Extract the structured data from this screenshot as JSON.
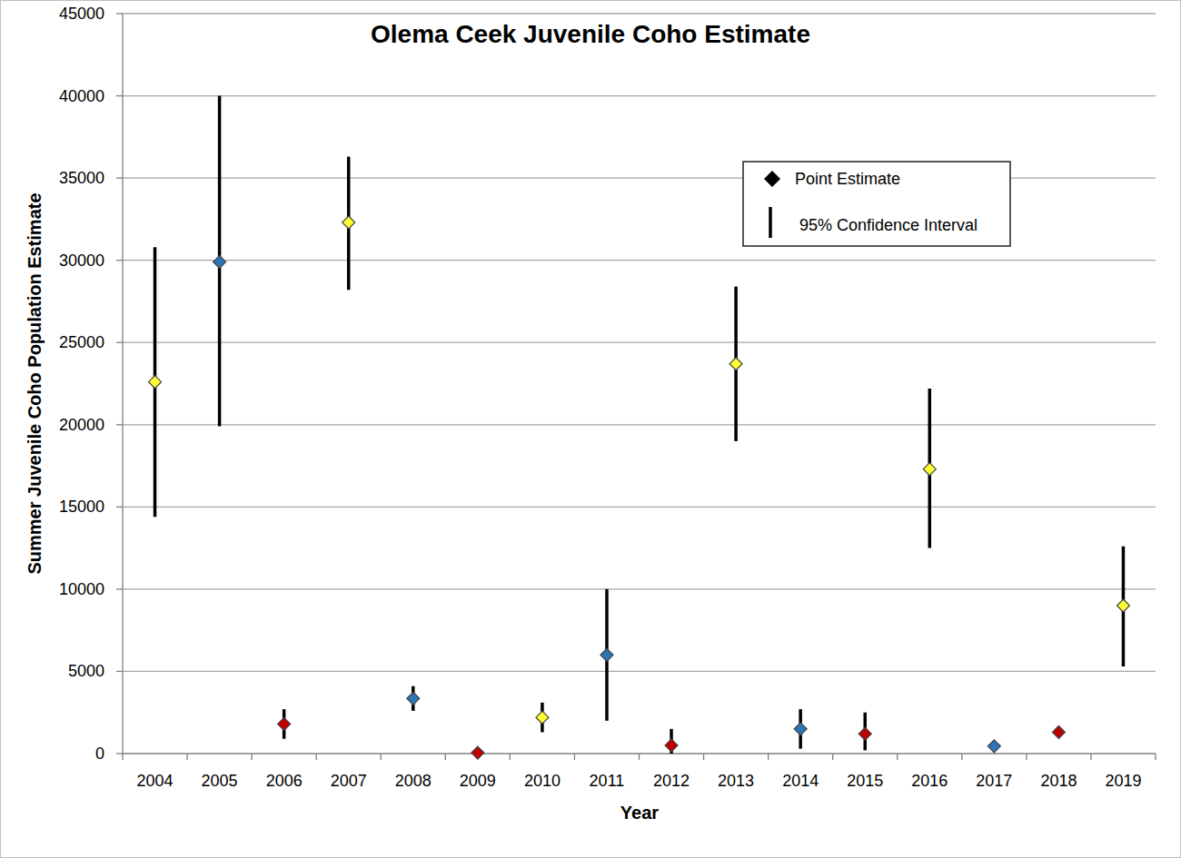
{
  "chart_data": {
    "type": "scatter",
    "title": "Olema Ceek Juvenile Coho Estimate",
    "x_label": "Year",
    "y_label": "Summer Juvenile Coho Population Estimate",
    "categories": [
      "2004",
      "2005",
      "2006",
      "2007",
      "2008",
      "2009",
      "2010",
      "2011",
      "2012",
      "2013",
      "2014",
      "2015",
      "2016",
      "2017",
      "2018",
      "2019"
    ],
    "values": [
      22600,
      29900,
      1800,
      32300,
      3350,
      50,
      2200,
      6000,
      500,
      23700,
      1500,
      1200,
      17300,
      450,
      1300,
      9000
    ],
    "ci_lower": [
      14400,
      19900,
      900,
      28200,
      2600,
      null,
      1300,
      2000,
      0,
      19000,
      300,
      200,
      12500,
      null,
      null,
      5300
    ],
    "ci_upper": [
      30800,
      40000,
      2700,
      36300,
      4100,
      null,
      3100,
      10000,
      1500,
      28400,
      2700,
      2500,
      22200,
      null,
      null,
      12600
    ],
    "colors": [
      "#ffff33",
      "#2e75b6",
      "#c00000",
      "#ffff33",
      "#2e75b6",
      "#c00000",
      "#ffff33",
      "#2e75b6",
      "#c00000",
      "#ffff33",
      "#2e75b6",
      "#c00000",
      "#ffff33",
      "#2e75b6",
      "#c00000",
      "#ffff33"
    ],
    "marker": "diamond",
    "legend_entries": [
      "Point Estimate",
      "95% Confidence Interval"
    ],
    "legend": "top-right",
    "ylim": [
      0,
      45000
    ],
    "yticks": [
      0,
      5000,
      10000,
      15000,
      20000,
      25000,
      30000,
      35000,
      40000,
      45000
    ],
    "grid": true
  }
}
